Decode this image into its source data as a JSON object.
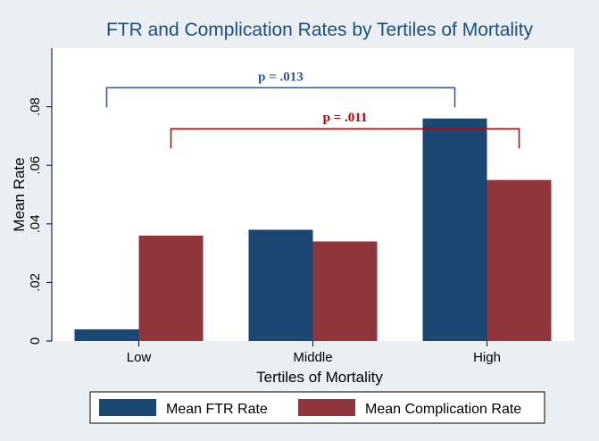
{
  "chart_data": {
    "type": "bar",
    "title": "FTR and Complication Rates by Tertiles of Mortality",
    "xlabel": "Tertiles of Mortality",
    "ylabel": "Mean Rate",
    "categories": [
      "Low",
      "Middle",
      "High"
    ],
    "series": [
      {
        "name": "Mean FTR Rate",
        "values": [
          0.004,
          0.038,
          0.076
        ],
        "color": "#1b4872"
      },
      {
        "name": "Mean Complication Rate",
        "values": [
          0.036,
          0.034,
          0.055
        ],
        "color": "#90353b"
      }
    ],
    "ylim": [
      0,
      0.1
    ],
    "yticks": [
      0,
      0.02,
      0.04,
      0.06,
      0.08
    ],
    "ytick_labels": [
      "0",
      ".02",
      ".04",
      ".06",
      ".08"
    ],
    "grid": false,
    "legend_position": "bottom",
    "annotations": [
      {
        "text": "p = .013",
        "from": "Low",
        "to": "High",
        "series_from": "Mean FTR Rate",
        "series_to": "Mean FTR Rate",
        "level": 0.0865,
        "color": "#2f5597"
      },
      {
        "text": "p = .011",
        "from": "Low",
        "to": "High",
        "series_from": "Mean Complication Rate",
        "series_to": "Mean Complication Rate",
        "level": 0.0725,
        "color": "#c00000"
      }
    ]
  }
}
